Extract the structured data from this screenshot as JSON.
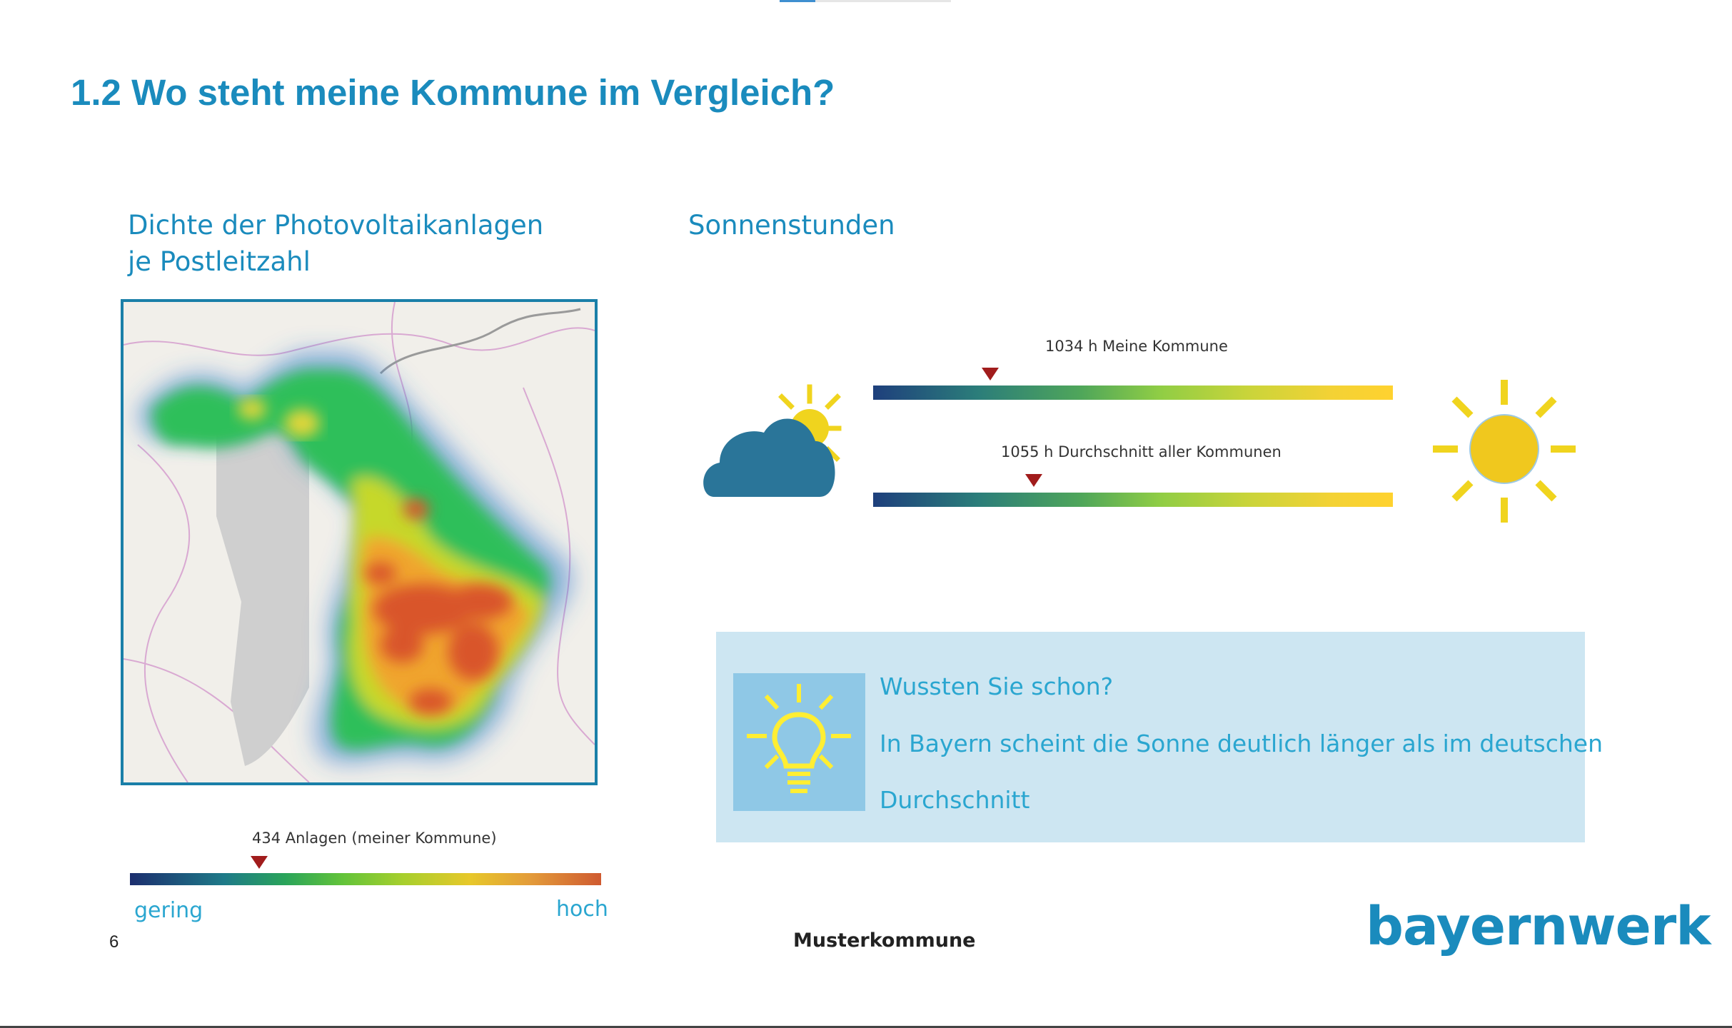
{
  "title": "1.2 Wo steht meine Kommune im Vergleich?",
  "pv": {
    "title": "Dichte der Photovoltaikanlagen je Postleitzahl",
    "marker_label": "434 Anlagen (meiner Kommune)",
    "marker_level": 0.27,
    "scale_low": "gering",
    "scale_high": "hoch"
  },
  "sun": {
    "title": "Sonnenstunden",
    "mine_label": "1034 h Meine Kommune",
    "mine_level": 0.23,
    "avg_label": "1055 h Durchschnitt aller Kommunen",
    "avg_level": 0.31,
    "icons": [
      "cloud-sun-icon",
      "sun-icon"
    ]
  },
  "info": {
    "heading": "Wussten Sie schon?",
    "body_line1": "In Bayern scheint die Sonne deutlich länger als im deutschen",
    "body_line2": "Durchschnitt",
    "icon": "lightbulb-icon"
  },
  "footer": {
    "page_number": "6",
    "center": "Musterkommune",
    "logo": "bayernwerk"
  },
  "colors": {
    "accent": "#1a8bbd",
    "marker": "#a11c1c",
    "info_bg": "#cde6f2"
  }
}
